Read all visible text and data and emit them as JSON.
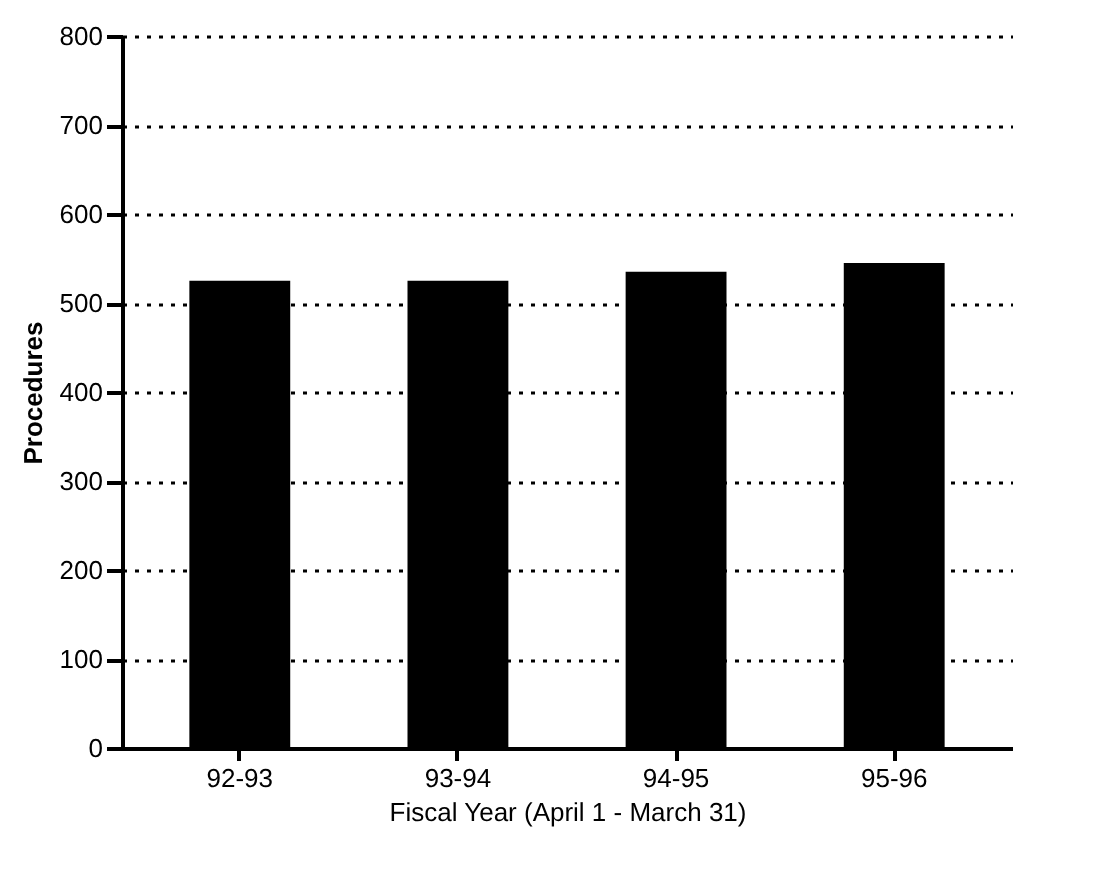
{
  "chart_data": {
    "type": "bar",
    "xlabel": "Fiscal Year (April 1 - March 31)",
    "ylabel": "Procedures",
    "categories": [
      "92-93",
      "93-94",
      "94-95",
      "95-96"
    ],
    "values": [
      525,
      525,
      535,
      545
    ],
    "color": "#000000",
    "ylim": [
      0,
      800
    ],
    "yticks": [
      0,
      100,
      200,
      300,
      400,
      500,
      600,
      700,
      800
    ],
    "grid": "y"
  }
}
